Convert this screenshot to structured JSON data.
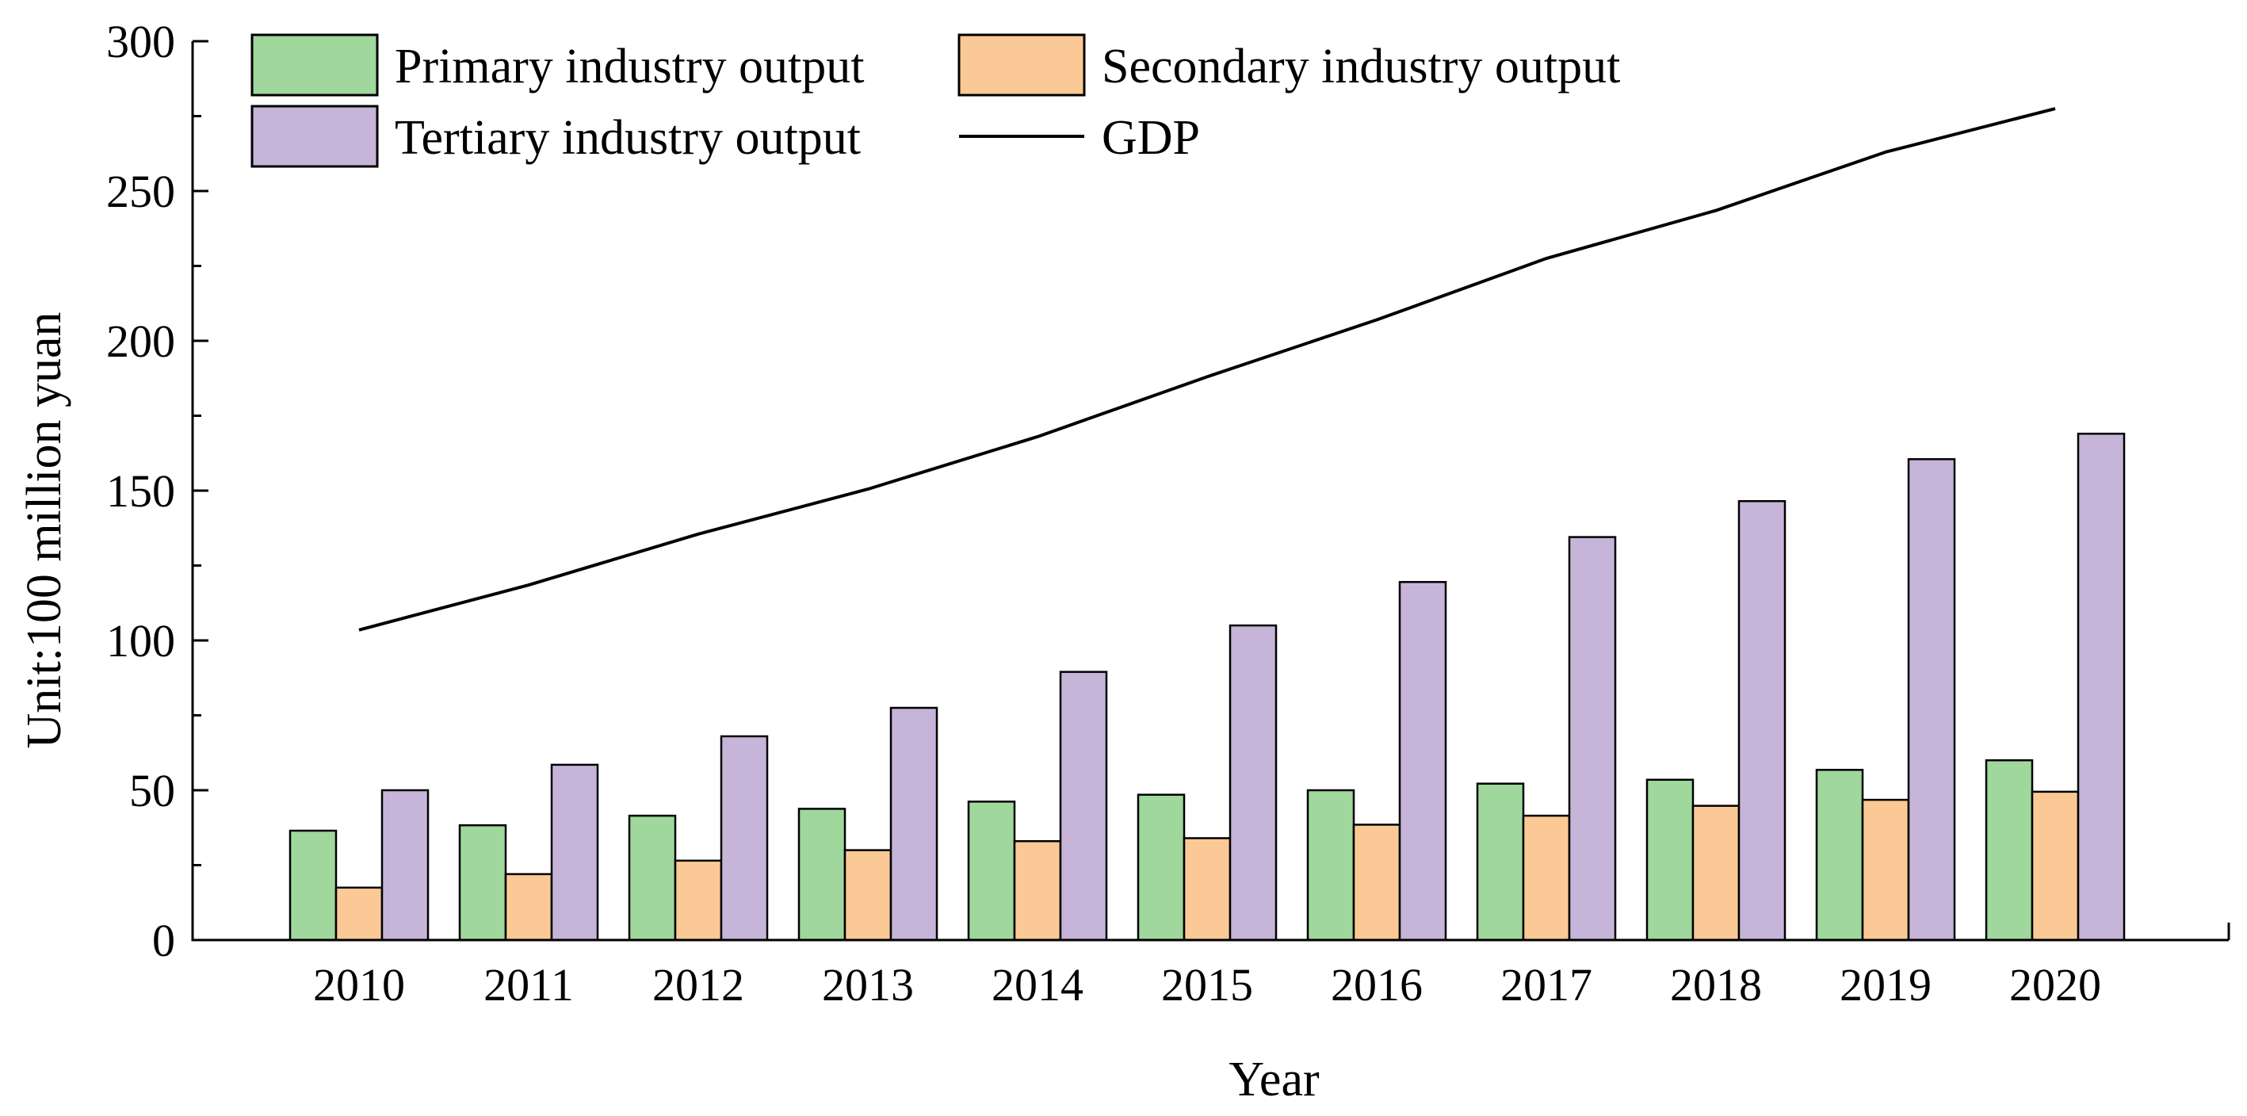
{
  "chart_data": {
    "type": "bar",
    "categories": [
      "2010",
      "2011",
      "2012",
      "2013",
      "2014",
      "2015",
      "2016",
      "2017",
      "2018",
      "2019",
      "2020"
    ],
    "series": [
      {
        "name": "Primary industry output",
        "type": "bar",
        "color": "#9fd79c",
        "values": [
          36.5,
          38.3,
          41.5,
          43.8,
          46.2,
          48.5,
          50.0,
          52.2,
          53.5,
          56.8,
          60.0
        ]
      },
      {
        "name": "Secondary industry output",
        "type": "bar",
        "color": "#fbc995",
        "values": [
          17.5,
          22.0,
          26.5,
          30.0,
          33.0,
          34.0,
          38.5,
          41.5,
          44.8,
          46.8,
          49.5
        ]
      },
      {
        "name": "Tertiary industry output",
        "type": "bar",
        "color": "#c6b4d9",
        "values": [
          50.0,
          58.5,
          68.0,
          77.5,
          89.5,
          105.0,
          119.5,
          134.5,
          146.5,
          160.5,
          169.0
        ]
      },
      {
        "name": "GDP",
        "type": "line",
        "color": "#000000",
        "values": [
          103.5,
          118.5,
          135.5,
          150.5,
          168.0,
          188.0,
          207.0,
          227.5,
          243.5,
          263.0,
          277.5
        ]
      }
    ],
    "xlabel": "Year",
    "ylabel": "Unit:100 million yuan",
    "ylim": [
      0,
      300
    ],
    "yticks": [
      "0",
      "50",
      "100",
      "150",
      "200",
      "250",
      "300"
    ],
    "grid": false,
    "legend_position": "top-left"
  }
}
